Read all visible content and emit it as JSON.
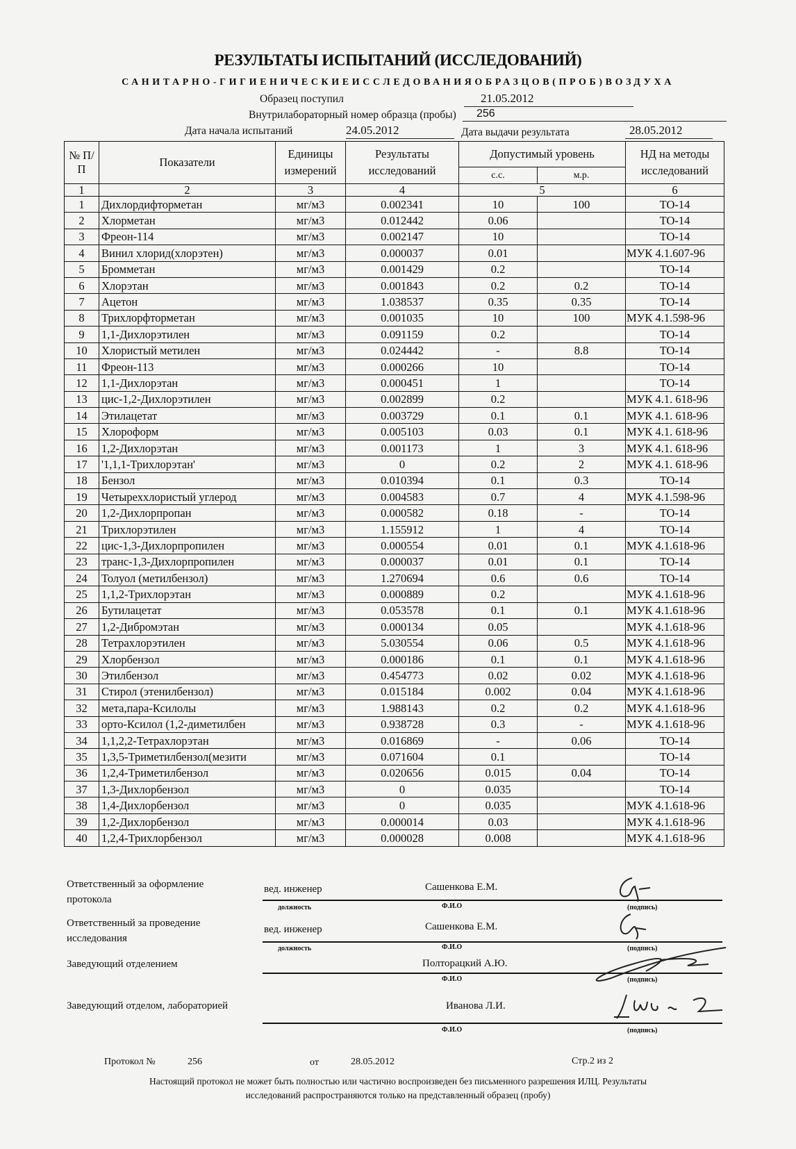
{
  "header": {
    "title": "РЕЗУЛЬТАТЫ ИСПЫТАНИЙ (ИССЛЕДОВАНИЙ)",
    "subtitle": "САНИТАРНО-ГИГИЕНИЧЕСКИЕИССЛЕДОВАНИЯОБРАЗЦОВ(ПРОБ)ВОЗДУХА",
    "sample_received_label": "Образец поступил",
    "sample_received_value": "21.05.2012",
    "lab_number_label": "Внутрилабораторный номер образца (пробы)",
    "lab_number_value": "256",
    "test_start_label": "Дата начала испытаний",
    "test_start_value": "24.05.2012",
    "result_date_label": "Дата выдачи результата",
    "result_date_value": "28.05.2012"
  },
  "table": {
    "headers": {
      "num": "№ П/П",
      "indicator": "Показатели",
      "units": "Единицы измерений",
      "results": "Результаты исследований",
      "allowed": "Допустимый уровень",
      "cc": "с.с.",
      "mr": "м.р.",
      "method": "НД на методы исследований"
    },
    "column_numbers": [
      "1",
      "2",
      "3",
      "4",
      "5",
      "6"
    ],
    "rows": [
      [
        "1",
        "Дихлордифторметан",
        "мг/м3",
        "0.002341",
        "10",
        "100",
        "ТО-14"
      ],
      [
        "2",
        "Хлорметан",
        "мг/м3",
        "0.012442",
        "0.06",
        "",
        "ТО-14"
      ],
      [
        "3",
        "Фреон-114",
        "мг/м3",
        "0.002147",
        "10",
        "",
        "ТО-14"
      ],
      [
        "4",
        "Винил хлорид(хлорэтен)",
        "мг/м3",
        "0.000037",
        "0.01",
        "",
        "МУК 4.1.607-96"
      ],
      [
        "5",
        "Бромметан",
        "мг/м3",
        "0.001429",
        "0.2",
        "",
        "ТО-14"
      ],
      [
        "6",
        "Хлорэтан",
        "мг/м3",
        "0.001843",
        "0.2",
        "0.2",
        "ТО-14"
      ],
      [
        "7",
        "Ацетон",
        "мг/м3",
        "1.038537",
        "0.35",
        "0.35",
        "ТО-14"
      ],
      [
        "8",
        "Трихлорфторметан",
        "мг/м3",
        "0.001035",
        "10",
        "100",
        "МУК 4.1.598-96"
      ],
      [
        "9",
        "1,1-Дихлорэтилен",
        "мг/м3",
        "0.091159",
        "0.2",
        "",
        "ТО-14"
      ],
      [
        "10",
        "Хлористый метилен",
        "мг/м3",
        "0.024442",
        "-",
        "8.8",
        "ТО-14"
      ],
      [
        "11",
        "Фреон-113",
        "мг/м3",
        "0.000266",
        "10",
        "",
        "ТО-14"
      ],
      [
        "12",
        "1,1-Дихлорэтан",
        "мг/м3",
        "0.000451",
        "1",
        "",
        "ТО-14"
      ],
      [
        "13",
        "цис-1,2-Дихлорэтилен",
        "мг/м3",
        "0.002899",
        "0.2",
        "",
        "МУК 4.1. 618-96"
      ],
      [
        "14",
        "Этилацетат",
        "мг/м3",
        "0.003729",
        "0.1",
        "0.1",
        "МУК 4.1. 618-96"
      ],
      [
        "15",
        "Хлороформ",
        "мг/м3",
        "0.005103",
        "0.03",
        "0.1",
        "МУК 4.1. 618-96"
      ],
      [
        "16",
        "1,2-Дихлорэтан",
        "мг/м3",
        "0.001173",
        "1",
        "3",
        "МУК 4.1. 618-96"
      ],
      [
        "17",
        "'1,1,1-Трихлорэтан'",
        "мг/м3",
        "0",
        "0.2",
        "2",
        "МУК 4.1. 618-96"
      ],
      [
        "18",
        "Бензол",
        "мг/м3",
        "0.010394",
        "0.1",
        "0.3",
        "ТО-14"
      ],
      [
        "19",
        "Четыреххлористый углерод",
        "мг/м3",
        "0.004583",
        "0.7",
        "4",
        "МУК 4.1.598-96"
      ],
      [
        "20",
        "1,2-Дихлорпропан",
        "мг/м3",
        "0.000582",
        "0.18",
        "-",
        "ТО-14"
      ],
      [
        "21",
        "Трихлорэтилен",
        "мг/м3",
        "1.155912",
        "1",
        "4",
        "ТО-14"
      ],
      [
        "22",
        "цис-1,3-Дихлорпропилен",
        "мг/м3",
        "0.000554",
        "0.01",
        "0.1",
        "МУК 4.1.618-96"
      ],
      [
        "23",
        "транс-1,3-Дихлорпропилен",
        "мг/м3",
        "0.000037",
        "0.01",
        "0.1",
        "ТО-14"
      ],
      [
        "24",
        "Толуол (метилбензол)",
        "мг/м3",
        "1.270694",
        "0.6",
        "0.6",
        "ТО-14"
      ],
      [
        "25",
        "1,1,2-Трихлорэтан",
        "мг/м3",
        "0.000889",
        "0.2",
        "",
        "МУК 4.1.618-96"
      ],
      [
        "26",
        "Бутилацетат",
        "мг/м3",
        "0.053578",
        "0.1",
        "0.1",
        "МУК 4.1.618-96"
      ],
      [
        "27",
        "1,2-Дибромэтан",
        "мг/м3",
        "0.000134",
        "0.05",
        "",
        "МУК 4.1.618-96"
      ],
      [
        "28",
        "Тетрахлорэтилен",
        "мг/м3",
        "5.030554",
        "0.06",
        "0.5",
        "МУК 4.1.618-96"
      ],
      [
        "29",
        "Хлорбензол",
        "мг/м3",
        "0.000186",
        "0.1",
        "0.1",
        "МУК 4.1.618-96"
      ],
      [
        "30",
        "Этилбензол",
        "мг/м3",
        "0.454773",
        "0.02",
        "0.02",
        "МУК 4.1.618-96"
      ],
      [
        "31",
        "Стирол (этенилбензол)",
        "мг/м3",
        "0.015184",
        "0.002",
        "0.04",
        "МУК 4.1.618-96"
      ],
      [
        "32",
        "мета,пара-Ксилолы",
        "мг/м3",
        "1.988143",
        "0.2",
        "0.2",
        "МУК 4.1.618-96"
      ],
      [
        "33",
        "орто-Ксилол (1,2-диметилбен",
        "мг/м3",
        "0.938728",
        "0.3",
        "-",
        "МУК 4.1.618-96"
      ],
      [
        "34",
        "1,1,2,2-Тетрахлорэтан",
        "мг/м3",
        "0.016869",
        "-",
        "0.06",
        "ТО-14"
      ],
      [
        "35",
        "1,3,5-Триметилбензол(мезити",
        "мг/м3",
        "0.071604",
        "0.1",
        "",
        "ТО-14"
      ],
      [
        "36",
        "1,2,4-Триметилбензол",
        "мг/м3",
        "0.020656",
        "0.015",
        "0.04",
        "ТО-14"
      ],
      [
        "37",
        "1,3-Дихлорбензол",
        "мг/м3",
        "0",
        "0.035",
        "",
        "ТО-14"
      ],
      [
        "38",
        "1,4-Дихлорбензол",
        "мг/м3",
        "0",
        "0.035",
        "",
        "МУК 4.1.618-96"
      ],
      [
        "39",
        "1,2-Дихлорбензол",
        "мг/м3",
        "0.000014",
        "0.03",
        "",
        "МУК 4.1.618-96"
      ],
      [
        "40",
        "1,2,4-Трихлорбензол",
        "мг/м3",
        "0.000028",
        "0.008",
        "",
        "МУК 4.1.618-96"
      ]
    ]
  },
  "signatures": {
    "position_caption": "должность",
    "name_caption": "Ф.И.О",
    "signature_caption": "(подпись)",
    "rows": [
      {
        "role": "Ответственный за оформление протокола",
        "position": "вед. инженер",
        "name": "Сашенкова Е.М."
      },
      {
        "role": "Ответственный за проведение исследования",
        "position": "вед. инженер",
        "name": "Сашенкова Е.М."
      },
      {
        "role": "Заведующий отделением",
        "position": "",
        "name": "Полторацкий А.Ю."
      },
      {
        "role": "Заведующий отделом, лабораторией",
        "position": "",
        "name": "Иванова Л.И."
      }
    ]
  },
  "footer": {
    "protocol_label": "Протокол №",
    "protocol_number": "256",
    "from_label": "от",
    "protocol_date": "28.05.2012",
    "page": "Стр.2 из 2",
    "disclaimer_line1": "Настоящий протокол не может быть полностью или частично воспроизведен без письменного разрешения ИЛЦ. Результаты",
    "disclaimer_line2": "исследований распространяются только на представленный образец (пробу)"
  }
}
